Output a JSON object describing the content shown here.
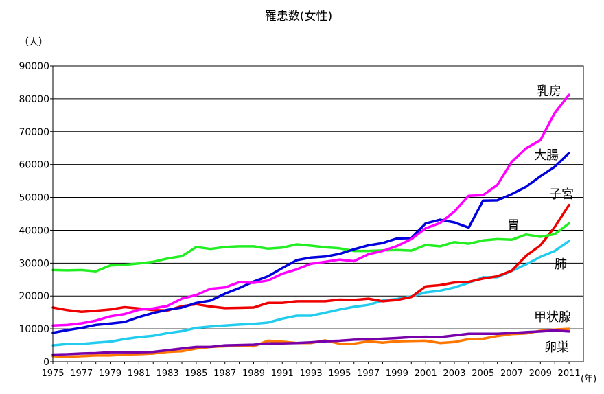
{
  "chart_data": {
    "type": "line",
    "title": "罹患数(女性)",
    "y_unit_label": "（人）",
    "x_unit_label": "(年)",
    "ylabel": "",
    "xlabel": "",
    "ylim": [
      0,
      90000
    ],
    "y_ticks": [
      0,
      10000,
      20000,
      30000,
      40000,
      50000,
      60000,
      70000,
      80000,
      90000
    ],
    "x_tick_labels": [
      "1975",
      "1977",
      "1979",
      "1981",
      "1983",
      "1985",
      "1987",
      "1989",
      "1991",
      "1993",
      "1995",
      "1997",
      "1999",
      "2001",
      "2003",
      "2005",
      "2007",
      "2009",
      "2011"
    ],
    "grid": "horizontal",
    "legend": "labels at line ends",
    "x": [
      1975,
      1976,
      1977,
      1978,
      1979,
      1980,
      1981,
      1982,
      1983,
      1984,
      1985,
      1986,
      1987,
      1988,
      1989,
      1990,
      1991,
      1992,
      1993,
      1994,
      1995,
      1996,
      1997,
      1998,
      1999,
      2000,
      2001,
      2002,
      2003,
      2004,
      2005,
      2006,
      2007,
      2008,
      2009,
      2010,
      2011
    ],
    "series": [
      {
        "name": "乳房",
        "color": "#ff00ff",
        "values": [
          11000,
          11200,
          11700,
          12500,
          13800,
          14500,
          15800,
          16200,
          17000,
          19200,
          20300,
          22200,
          22600,
          24200,
          24000,
          24700,
          26800,
          28100,
          29800,
          30400,
          31100,
          30600,
          32700,
          33700,
          35200,
          37300,
          40600,
          42200,
          45700,
          50500,
          50700,
          53800,
          60800,
          64900,
          67400,
          75700,
          81200
        ]
      },
      {
        "name": "大腸",
        "color": "#0000dd",
        "values": [
          8800,
          9600,
          10300,
          11200,
          11600,
          12100,
          13600,
          14800,
          15800,
          16500,
          17900,
          18600,
          20700,
          22400,
          24400,
          26000,
          28500,
          30900,
          31700,
          32000,
          32800,
          34200,
          35400,
          36100,
          37500,
          37600,
          42100,
          43200,
          42400,
          40800,
          49000,
          49100,
          51000,
          53200,
          56400,
          59300,
          63500
        ]
      },
      {
        "name": "子宮",
        "color": "#ee0000",
        "values": [
          16500,
          15700,
          15200,
          15500,
          15900,
          16600,
          16200,
          15700,
          15600,
          16900,
          17500,
          16800,
          16300,
          16400,
          16500,
          17900,
          17900,
          18400,
          18400,
          18400,
          18900,
          18800,
          19200,
          18400,
          18800,
          19700,
          22900,
          23300,
          24100,
          24300,
          25300,
          26000,
          27700,
          32200,
          35400,
          41000,
          47700
        ]
      },
      {
        "name": "胃",
        "color": "#22ee22",
        "values": [
          27900,
          27800,
          27900,
          27500,
          29300,
          29500,
          29900,
          30400,
          31400,
          32100,
          34900,
          34300,
          34900,
          35100,
          35100,
          34400,
          34700,
          35700,
          35300,
          34800,
          34500,
          33700,
          33700,
          33900,
          34000,
          33800,
          35500,
          35100,
          36400,
          35900,
          36900,
          37300,
          37100,
          38700,
          38000,
          38800,
          42100
        ]
      },
      {
        "name": "肺",
        "color": "#22ccee",
        "values": [
          5000,
          5400,
          5400,
          5800,
          6100,
          6900,
          7500,
          7900,
          8700,
          9300,
          10300,
          10700,
          11000,
          11300,
          11500,
          11900,
          13100,
          14000,
          14000,
          14900,
          15900,
          16700,
          17300,
          18600,
          19100,
          19900,
          21100,
          21600,
          22600,
          24000,
          25700,
          25700,
          27600,
          29600,
          31900,
          33700,
          36700
        ]
      },
      {
        "name": "甲状腺",
        "color": "#7700aa",
        "values": [
          2200,
          2300,
          2500,
          2600,
          2900,
          2900,
          2900,
          3000,
          3500,
          4000,
          4500,
          4500,
          5000,
          5100,
          5200,
          5600,
          5600,
          5700,
          5900,
          6200,
          6400,
          6700,
          6800,
          7000,
          7200,
          7500,
          7600,
          7500,
          8000,
          8500,
          8500,
          8500,
          8700,
          9000,
          9200,
          9500,
          9200
        ]
      },
      {
        "name": "卵巣",
        "color": "#ff7700",
        "values": [
          1700,
          1500,
          1700,
          1900,
          1900,
          2200,
          2300,
          2500,
          3000,
          3200,
          4000,
          4500,
          4700,
          4900,
          4700,
          6400,
          6100,
          5700,
          5700,
          6500,
          5500,
          5500,
          6200,
          5800,
          6200,
          6300,
          6400,
          5700,
          6000,
          6900,
          7000,
          7800,
          8400,
          8600,
          9400,
          9800,
          10000
        ]
      }
    ]
  }
}
